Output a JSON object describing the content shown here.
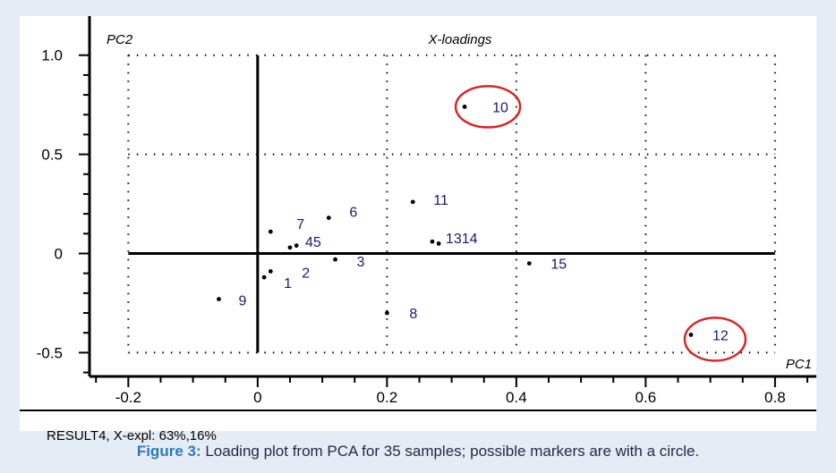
{
  "chart_data": {
    "type": "scatter",
    "title": "X-loadings",
    "xlabel": "PC1",
    "ylabel": "PC2",
    "xlim": [
      -0.26,
      0.85
    ],
    "ylim": [
      -0.62,
      1.08
    ],
    "x_ticks": [
      -0.2,
      0,
      0.2,
      0.4,
      0.6,
      0.8
    ],
    "x_tick_labels": [
      "-0.2",
      "0",
      "0.2",
      "0.4",
      "0.6",
      "0.8"
    ],
    "y_ticks": [
      -0.5,
      0,
      0.5,
      1.0
    ],
    "y_tick_labels": [
      "-0.5",
      "0",
      "0.5",
      "1.0"
    ],
    "grid": "dotted",
    "points": [
      {
        "label": "1",
        "x": 0.01,
        "y": -0.12
      },
      {
        "label": "2",
        "x": 0.02,
        "y": -0.09
      },
      {
        "label": "3",
        "x": 0.12,
        "y": -0.03
      },
      {
        "label": "4",
        "x": 0.05,
        "y": 0.03
      },
      {
        "label": "5",
        "x": 0.06,
        "y": 0.04
      },
      {
        "label": "6",
        "x": 0.11,
        "y": 0.18
      },
      {
        "label": "7",
        "x": 0.02,
        "y": 0.11
      },
      {
        "label": "8",
        "x": 0.2,
        "y": -0.3
      },
      {
        "label": "9",
        "x": -0.06,
        "y": -0.23
      },
      {
        "label": "10",
        "x": 0.32,
        "y": 0.74
      },
      {
        "label": "11",
        "x": 0.24,
        "y": 0.26
      },
      {
        "label": "12",
        "x": 0.67,
        "y": -0.41
      },
      {
        "label": "13",
        "x": 0.27,
        "y": 0.06
      },
      {
        "label": "14",
        "x": 0.28,
        "y": 0.05
      },
      {
        "label": "15",
        "x": 0.42,
        "y": -0.05
      }
    ],
    "point_labels_display": [
      "1",
      "2",
      "3",
      "45",
      "6",
      "7",
      "8",
      "9",
      "10",
      "11",
      "12",
      "1314",
      "15"
    ],
    "highlighted": [
      "10",
      "12"
    ],
    "colors": {
      "point": "#000000",
      "label": "#1a1a6e",
      "highlight_circle": "#d62828",
      "axis": "#000000",
      "grid": "#000000"
    }
  },
  "footer": {
    "result_text": "RESULT4, X-expl: 63%,16%"
  },
  "caption": {
    "label": "Figure 3:",
    "text": " Loading plot from PCA for 35 samples; possible markers are with a circle."
  },
  "colors": {
    "frame_background": "#e6ecf5",
    "caption_label": "#2a7ab8",
    "caption_text": "#1f2a44"
  }
}
